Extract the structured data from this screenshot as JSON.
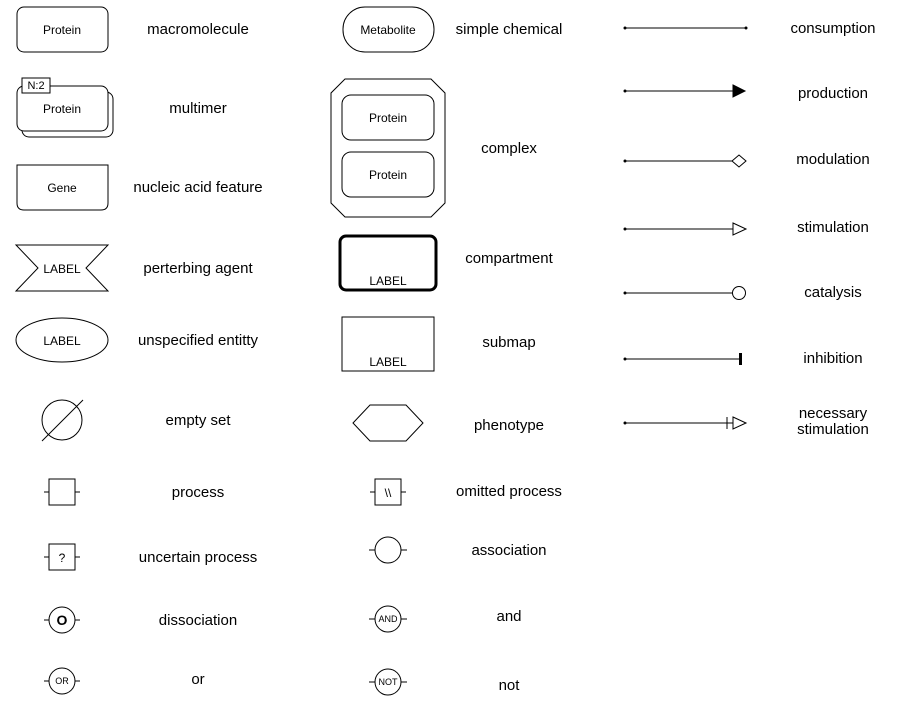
{
  "glyphs": {
    "macromolecule_text": "Protein",
    "multimer_text": "Protein",
    "multimer_badge": "N:2",
    "gene_text": "Gene",
    "perturbing_text": "LABEL",
    "unspecified_text": "LABEL",
    "dissociation_text": "O",
    "or_text": "OR",
    "metabolite_text": "Metabolite",
    "complex_member1": "Protein",
    "complex_member2": "Protein",
    "compartment_text": "LABEL",
    "submap_text": "LABEL",
    "omitted_text": "\\\\",
    "uncertain_text": "?",
    "and_text": "AND",
    "not_text": "NOT"
  },
  "labels": {
    "macromolecule": "macromolecule",
    "multimer": "multimer",
    "nucleic_acid_feature": "nucleic acid feature",
    "perturbing_agent": "perterbing agent",
    "unspecified_entity": "unspecified entitty",
    "empty_set": "empty set",
    "process": "process",
    "uncertain_process": "uncertain process",
    "dissociation": "dissociation",
    "or": "or",
    "simple_chemical": "simple chemical",
    "complex": "complex",
    "compartment": "compartment",
    "submap": "submap",
    "phenotype": "phenotype",
    "omitted_process": "omitted process",
    "association": "association",
    "and": "and",
    "not": "not",
    "consumption": "consumption",
    "production": "production",
    "modulation": "modulation",
    "stimulation": "stimulation",
    "catalysis": "catalysis",
    "inhibition": "inhibition",
    "necessary_stimulation_1": "necessary",
    "necessary_stimulation_2": "stimulation"
  }
}
